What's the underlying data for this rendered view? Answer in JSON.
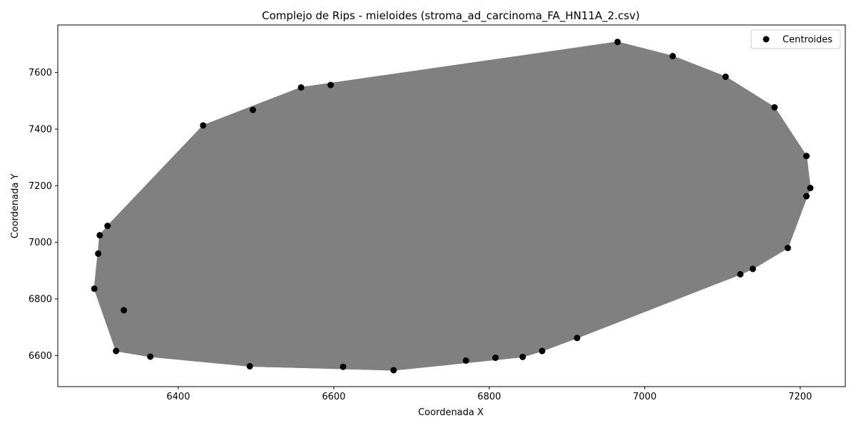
{
  "chart_data": {
    "type": "scatter",
    "title": "Complejo de Rips - mieloides (stroma_ad_carcinoma_FA_HN11A_2.csv)",
    "xlabel": "Coordenada X",
    "ylabel": "Coordenada Y",
    "xlim": [
      6245,
      7258
    ],
    "ylim": [
      6490,
      7768
    ],
    "xticks": [
      6400,
      6600,
      6800,
      7000,
      7200
    ],
    "yticks": [
      6600,
      6800,
      7000,
      7200,
      7400,
      7600
    ],
    "grid": false,
    "legend": {
      "entries": [
        "Centroides"
      ],
      "placement": "top-right"
    },
    "edge_color": "#808080",
    "point_color": "#000000",
    "series": [
      {
        "name": "Centroides",
        "points": [
          [
            6292,
            6836
          ],
          [
            6297,
            6960
          ],
          [
            6299,
            7025
          ],
          [
            6309,
            7058
          ],
          [
            6320,
            6616
          ],
          [
            6330,
            6760
          ],
          [
            6364,
            6596
          ],
          [
            6432,
            7413
          ],
          [
            6492,
            6562
          ],
          [
            6496,
            7468
          ],
          [
            6558,
            7547
          ],
          [
            6596,
            7556
          ],
          [
            6612,
            6560
          ],
          [
            6677,
            6548
          ],
          [
            6770,
            6582
          ],
          [
            6808,
            6592
          ],
          [
            6843,
            6595
          ],
          [
            6868,
            6616
          ],
          [
            6913,
            6662
          ],
          [
            6965,
            7708
          ],
          [
            7036,
            7658
          ],
          [
            7104,
            7585
          ],
          [
            7123,
            6887
          ],
          [
            7139,
            6906
          ],
          [
            7167,
            7477
          ],
          [
            7184,
            6980
          ],
          [
            7208,
            7305
          ],
          [
            7208,
            7163
          ],
          [
            7213,
            7192
          ]
        ]
      }
    ]
  }
}
